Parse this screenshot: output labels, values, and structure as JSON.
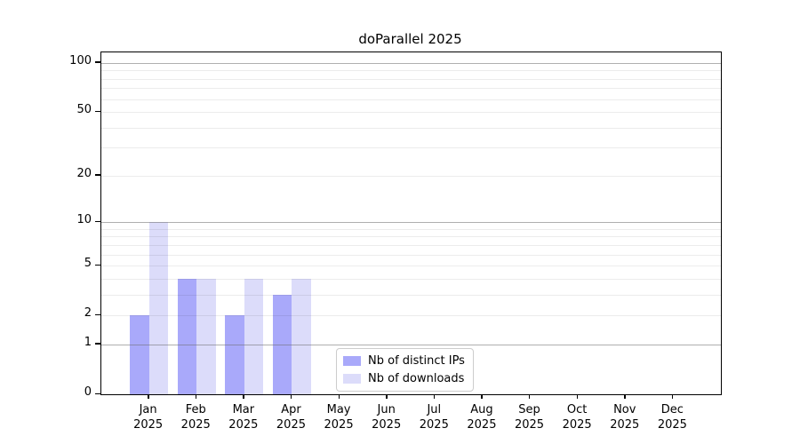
{
  "title": "doParallel 2025",
  "legend": {
    "items": [
      {
        "label": "Nb of distinct IPs",
        "color": "#a9a9fa"
      },
      {
        "label": "Nb of downloads",
        "color": "#dcdcfa"
      }
    ]
  },
  "colors": {
    "series_dark": "#a9a9fa",
    "series_light": "#dcdcfa",
    "axis": "#000000",
    "major_grid": "#8e8e8e",
    "minor_grid": "#e8e8e8",
    "background": "#ffffff",
    "legend_border": "#cccccc"
  },
  "chart_data": {
    "type": "bar",
    "title": "doParallel 2025",
    "categories": [
      "Jan",
      "Feb",
      "Mar",
      "Apr",
      "May",
      "Jun",
      "Jul",
      "Aug",
      "Sep",
      "Oct",
      "Nov",
      "Dec"
    ],
    "category_year": "2025",
    "series": [
      {
        "name": "Nb of distinct IPs",
        "color": "#a9a9fa",
        "values": [
          2,
          4,
          2,
          3,
          0,
          0,
          0,
          0,
          0,
          0,
          0,
          0
        ]
      },
      {
        "name": "Nb of downloads",
        "color": "#dcdcfa",
        "values": [
          10,
          4,
          4,
          4,
          0,
          0,
          0,
          0,
          0,
          0,
          0,
          0
        ]
      }
    ],
    "xlabel": "",
    "ylabel": "",
    "yscale": "log1p",
    "ylim": [
      0,
      116
    ],
    "yticks": [
      0,
      1,
      2,
      5,
      10,
      20,
      50,
      100
    ],
    "major_gridlines": [
      1,
      10,
      100
    ],
    "minor_gridlines": [
      2,
      3,
      4,
      5,
      6,
      7,
      8,
      9,
      20,
      30,
      40,
      50,
      60,
      70,
      80,
      90
    ],
    "grid": true,
    "legend_position": "inside-lower-center"
  }
}
